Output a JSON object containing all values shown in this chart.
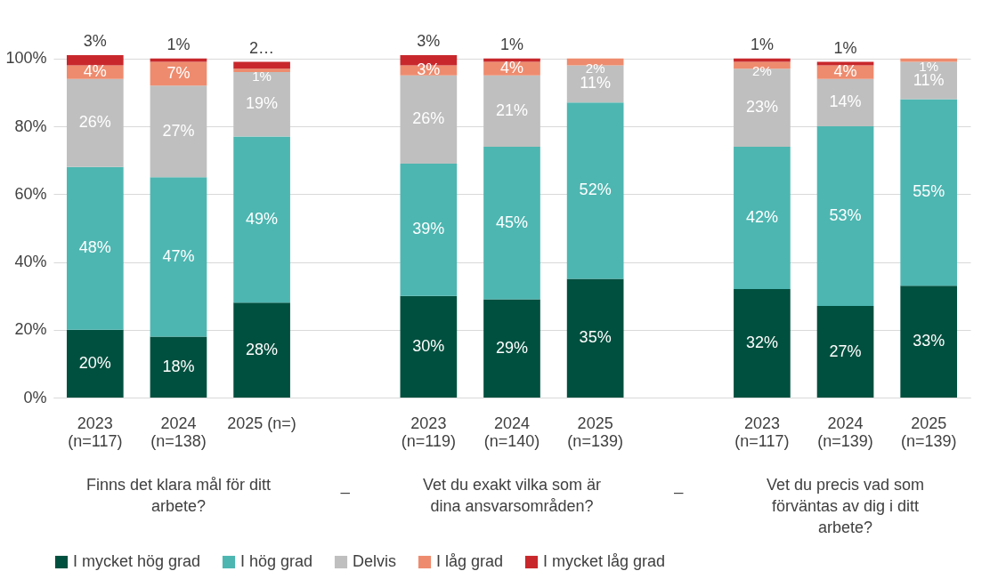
{
  "chart_data": {
    "type": "bar",
    "stacked": true,
    "categories": [
      "2023\n(n=117)",
      "2024\n(n=138)",
      "2025 (n=)",
      null,
      "2023\n(n=119)",
      "2024\n(n=140)",
      "2025\n(n=139)",
      null,
      "2023\n(n=117)",
      "2024\n(n=139)",
      "2025\n(n=139)"
    ],
    "series": [
      {
        "name": "I mycket hög grad",
        "color": "#00503f",
        "values": [
          20,
          18,
          28,
          null,
          30,
          29,
          35,
          null,
          32,
          27,
          33
        ],
        "value_labels": [
          "20%",
          "18%",
          "28%",
          null,
          "30%",
          "29%",
          "35%",
          null,
          "32%",
          "27%",
          "33%"
        ]
      },
      {
        "name": "I hög grad",
        "color": "#4db6b1",
        "values": [
          48,
          47,
          49,
          null,
          39,
          45,
          52,
          null,
          42,
          53,
          55
        ],
        "value_labels": [
          "48%",
          "47%",
          "49%",
          null,
          "39%",
          "45%",
          "52%",
          null,
          "42%",
          "53%",
          "55%"
        ]
      },
      {
        "name": "Delvis",
        "color": "#bfbfbf",
        "values": [
          26,
          27,
          19,
          null,
          26,
          21,
          11,
          null,
          23,
          14,
          11
        ],
        "value_labels": [
          "26%",
          "27%",
          "19%",
          null,
          "26%",
          "21%",
          "11%",
          null,
          "23%",
          "14%",
          "11%"
        ]
      },
      {
        "name": "I låg grad",
        "color": "#ee8b6e",
        "values": [
          4,
          7,
          1,
          null,
          3,
          4,
          2,
          null,
          2,
          4,
          1
        ],
        "value_labels": [
          "4%",
          "7%",
          "1%",
          null,
          "3%",
          "4%",
          "2%",
          null,
          "2%",
          "4%",
          "1%"
        ]
      },
      {
        "name": "I mycket låg grad",
        "color": "#c8282c",
        "values": [
          3,
          1,
          2,
          null,
          3,
          1,
          0,
          null,
          1,
          1,
          0
        ],
        "value_labels": [
          "3%",
          "1%",
          "2…",
          null,
          "3%",
          "1%",
          null,
          null,
          "1%",
          "1%",
          null
        ]
      }
    ],
    "annotations": [
      "Finns det klara mål för ditt\narbete?",
      "_",
      "Vet du exakt vilka som är\ndina ansvarsområden?",
      "_",
      "Vet du precis vad som\nförväntas av dig i ditt\narbete?"
    ],
    "ylim": [
      0,
      101
    ],
    "yticks": [
      {
        "value": 0,
        "label": "0%"
      },
      {
        "value": 20,
        "label": "20%"
      },
      {
        "value": 40,
        "label": "40%"
      },
      {
        "value": 60,
        "label": "60%"
      },
      {
        "value": 80,
        "label": "80%"
      },
      {
        "value": 100,
        "label": "100%"
      }
    ],
    "grid": "y",
    "legend": "bottom"
  }
}
